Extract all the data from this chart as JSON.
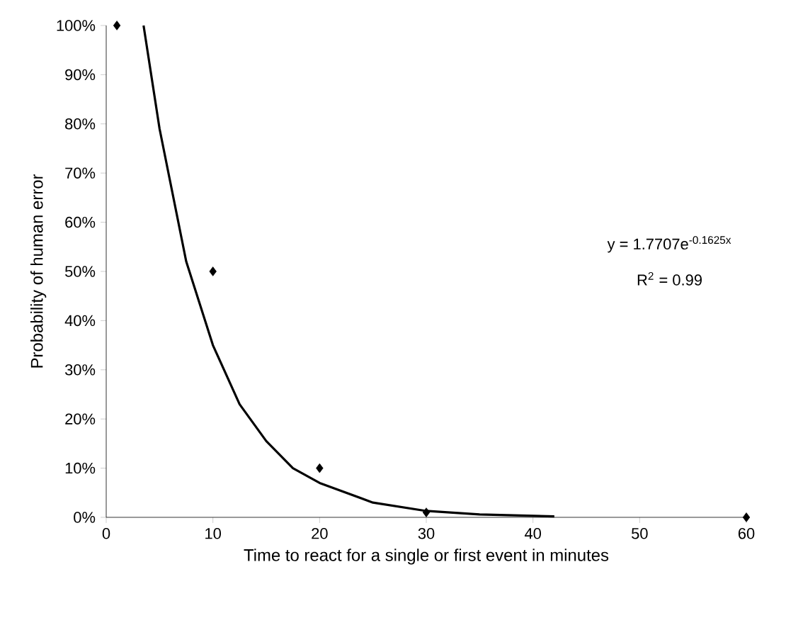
{
  "chart_data": {
    "type": "scatter",
    "xlabel": "Time to react for a single or first event in minutes",
    "ylabel": "Probability of human error",
    "series": [
      {
        "color": "#000000",
        "marker": "diamond",
        "x": [
          1,
          10,
          20,
          30,
          60
        ],
        "values": [
          100,
          50,
          10,
          1,
          0
        ]
      },
      {
        "type": "line",
        "color": "#000000",
        "marker": "none",
        "line_style": "solid",
        "x": [
          3.5,
          5,
          7.5,
          10,
          12.5,
          15,
          17.5,
          20,
          25,
          30,
          35,
          42
        ],
        "values": [
          100,
          79,
          52,
          35,
          23,
          15.5,
          10,
          7,
          3,
          1.3,
          0.6,
          0.2
        ]
      }
    ],
    "xlim": [
      0,
      60
    ],
    "xticks": [
      0,
      10,
      20,
      30,
      40,
      50,
      60
    ],
    "ylim": [
      0,
      100
    ],
    "yticks": [
      {
        "value": 0,
        "label": "0%"
      },
      {
        "value": 10,
        "label": "10%"
      },
      {
        "value": 20,
        "label": "20%"
      },
      {
        "value": 30,
        "label": "30%"
      },
      {
        "value": 40,
        "label": "40%"
      },
      {
        "value": 50,
        "label": "50%"
      },
      {
        "value": 60,
        "label": "60%"
      },
      {
        "value": 70,
        "label": "70%"
      },
      {
        "value": 80,
        "label": "80%"
      },
      {
        "value": 90,
        "label": "90%"
      },
      {
        "value": 100,
        "label": "100%"
      }
    ],
    "annotations": [
      "y = 1.7707e$^{-0.1625x}$",
      "R$^{2}$ = 0.99"
    ]
  }
}
